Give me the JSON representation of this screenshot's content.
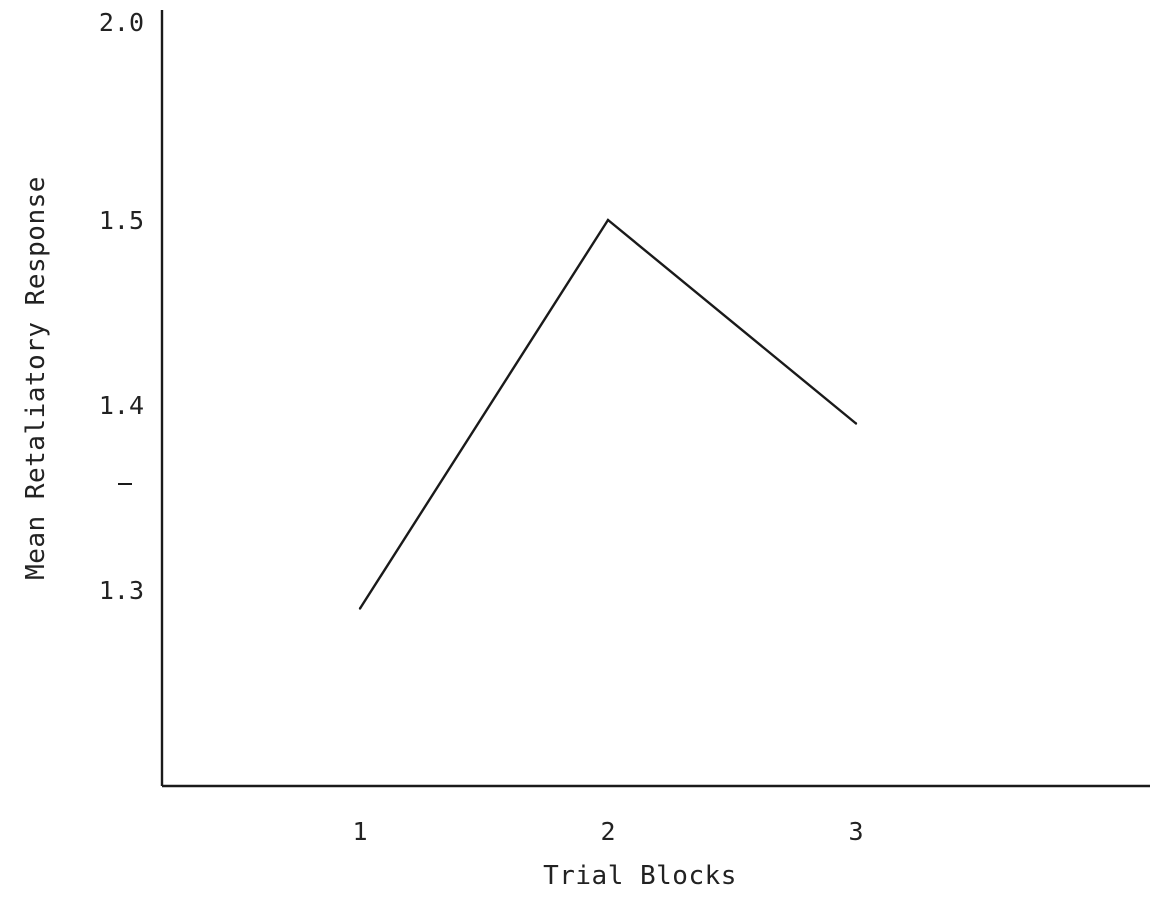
{
  "chart_data": {
    "type": "line",
    "title": "",
    "xlabel": "Trial Blocks",
    "ylabel": "Mean Retaliatory Response",
    "x": [
      1,
      2,
      3
    ],
    "categories": [
      "1",
      "2",
      "3"
    ],
    "series": [
      {
        "values": [
          1.29,
          1.5,
          1.39
        ]
      }
    ],
    "y_ticks": [
      "1.3",
      "1.4",
      "1.5",
      "2.0"
    ],
    "y_tick_values": [
      1.3,
      1.4,
      1.5,
      2.0
    ],
    "axis_break": true,
    "grid": false,
    "legend": "none",
    "line_color": "#1a1a1a"
  }
}
